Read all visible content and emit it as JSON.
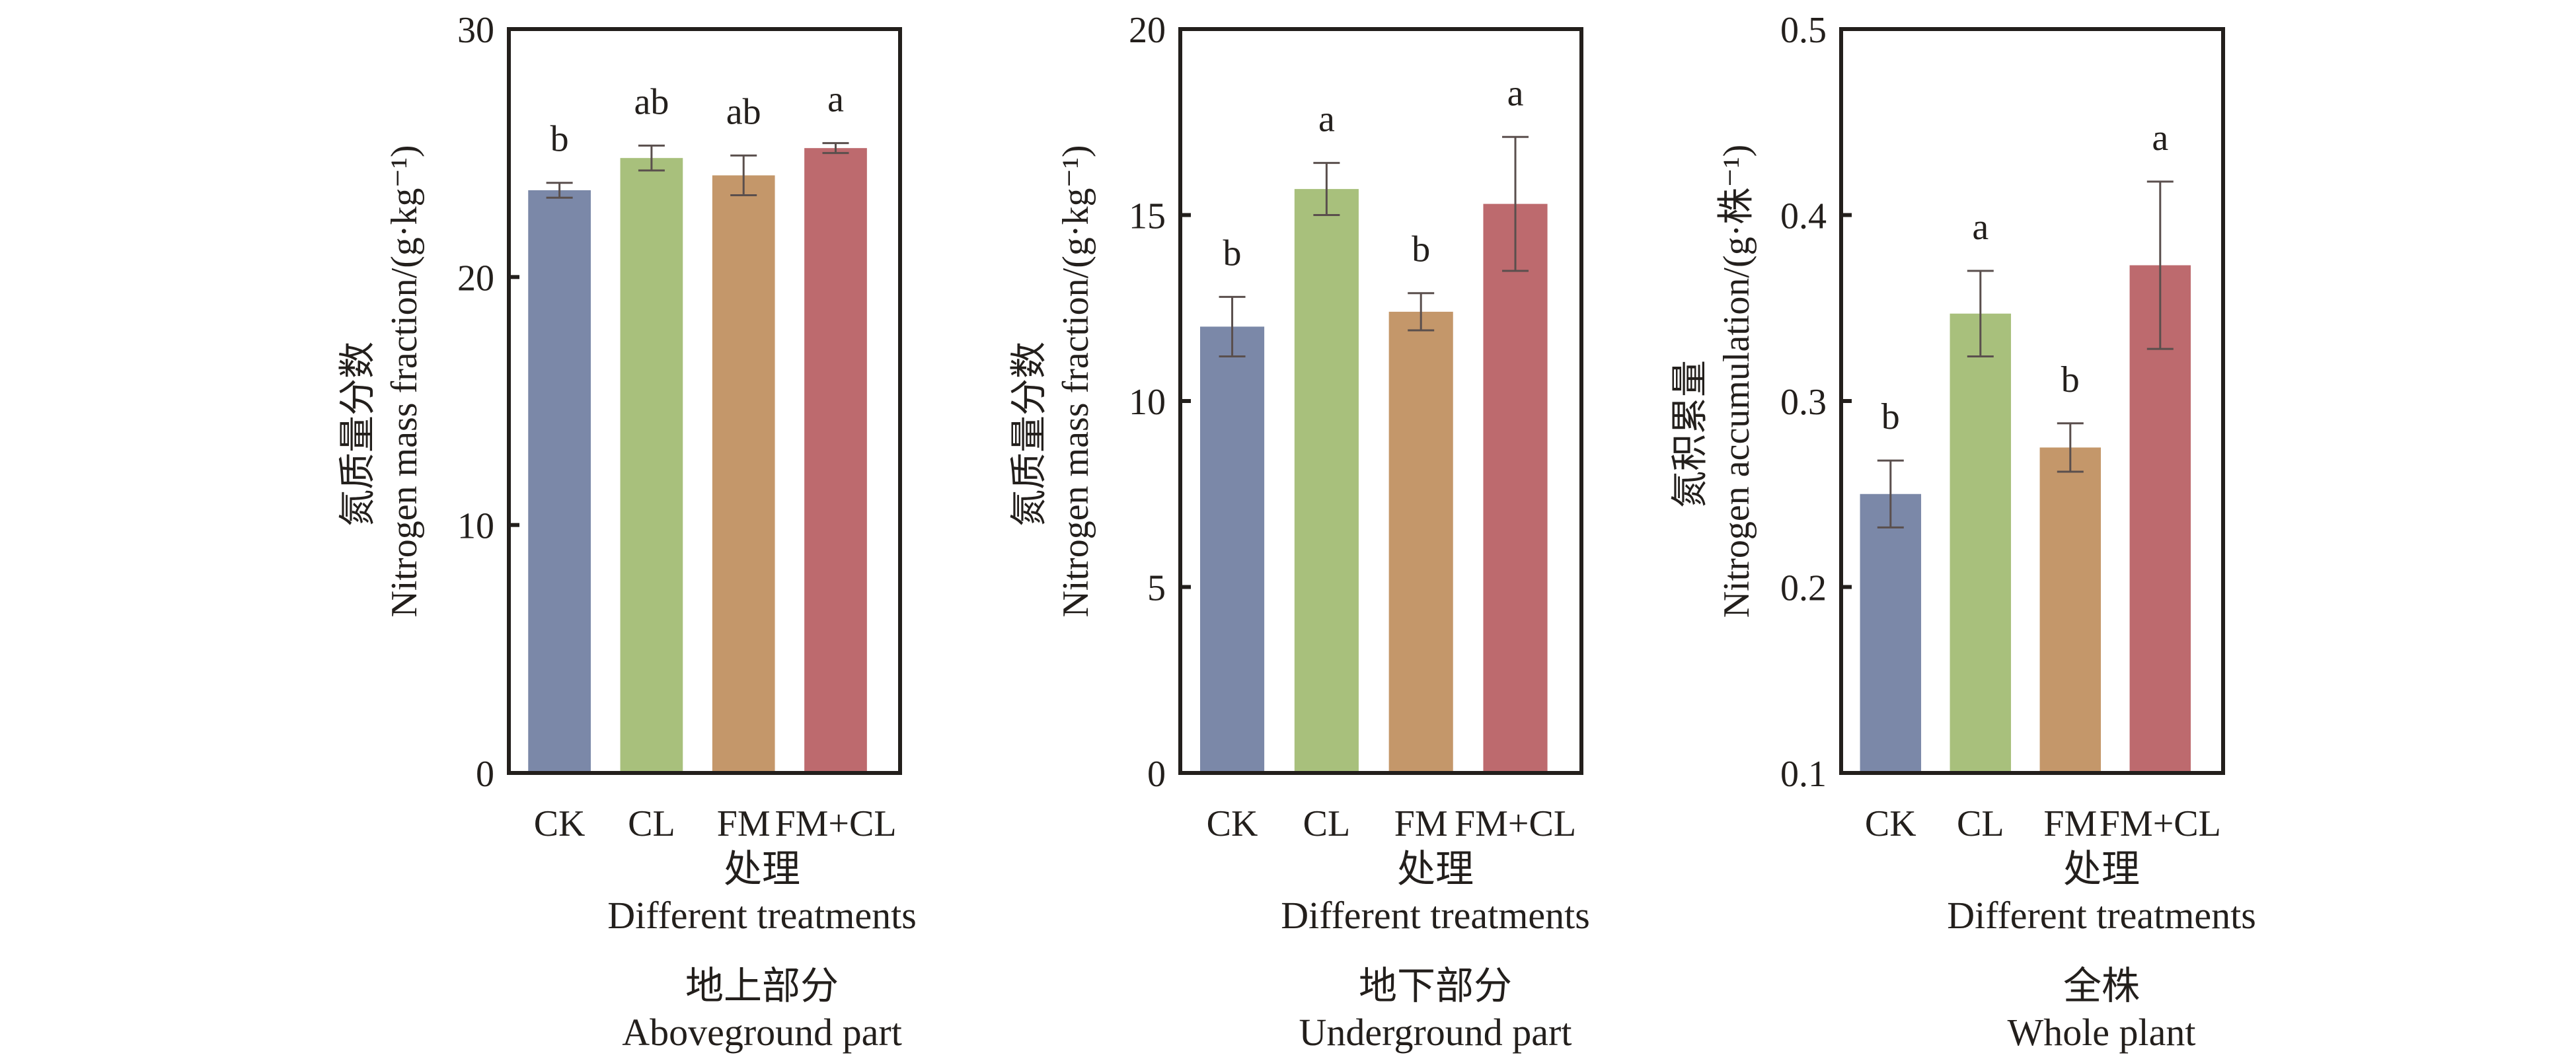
{
  "figure": {
    "x_title_cn": "处理",
    "x_title_en": "Different treatments"
  },
  "colors": {
    "CK": "#7b88a8",
    "CL": "#a8c07c",
    "FM": "#c4976a",
    "FM+CL": "#bd6a6e",
    "axis": "#231f1c",
    "error_bar": "#5a4f4d"
  },
  "chart_data": [
    {
      "type": "bar",
      "id": "aboveground",
      "caption_cn": "地上部分",
      "caption_en": "Aboveground part",
      "ylabel_cn": "氮质量分数",
      "ylabel_en": "Nitrogen mass fraction/(g·kg⁻¹)",
      "xlabel_cn": "处理",
      "xlabel_en": "Different treatments",
      "categories": [
        "CK",
        "CL",
        "FM",
        "FM+CL"
      ],
      "values": [
        23.5,
        24.8,
        24.1,
        25.2
      ],
      "errors": [
        0.3,
        0.5,
        0.8,
        0.2
      ],
      "significance": [
        "b",
        "ab",
        "ab",
        "a"
      ],
      "ylim": [
        0,
        30
      ],
      "yticks": [
        0,
        10,
        20,
        30
      ],
      "ytick_labels": [
        "0",
        "10",
        "20",
        "30"
      ],
      "grid": false
    },
    {
      "type": "bar",
      "id": "underground",
      "caption_cn": "地下部分",
      "caption_en": "Underground part",
      "ylabel_cn": "氮质量分数",
      "ylabel_en": "Nitrogen mass fraction/(g·kg⁻¹)",
      "xlabel_cn": "处理",
      "xlabel_en": "Different treatments",
      "categories": [
        "CK",
        "CL",
        "FM",
        "FM+CL"
      ],
      "values": [
        12.0,
        15.7,
        12.4,
        15.3
      ],
      "errors": [
        0.8,
        0.7,
        0.5,
        1.8
      ],
      "significance": [
        "b",
        "a",
        "b",
        "a"
      ],
      "ylim": [
        0,
        20
      ],
      "yticks": [
        0,
        5,
        10,
        15,
        20
      ],
      "ytick_labels": [
        "0",
        "5",
        "10",
        "15",
        "20"
      ],
      "grid": false
    },
    {
      "type": "bar",
      "id": "whole-plant",
      "caption_cn": "全株",
      "caption_en": "Whole plant",
      "ylabel_cn": "氮积累量",
      "ylabel_en": "Nitrogen accumulation/(g·株⁻¹)",
      "xlabel_cn": "处理",
      "xlabel_en": "Different treatments",
      "categories": [
        "CK",
        "CL",
        "FM",
        "FM+CL"
      ],
      "values": [
        0.25,
        0.347,
        0.275,
        0.373
      ],
      "errors": [
        0.018,
        0.023,
        0.013,
        0.045
      ],
      "significance": [
        "b",
        "a",
        "b",
        "a"
      ],
      "ylim": [
        0.1,
        0.5
      ],
      "yticks": [
        0.1,
        0.2,
        0.3,
        0.4,
        0.5
      ],
      "ytick_labels": [
        "0.1",
        "0.2",
        "0.3",
        "0.4",
        "0.5"
      ],
      "grid": false
    }
  ]
}
